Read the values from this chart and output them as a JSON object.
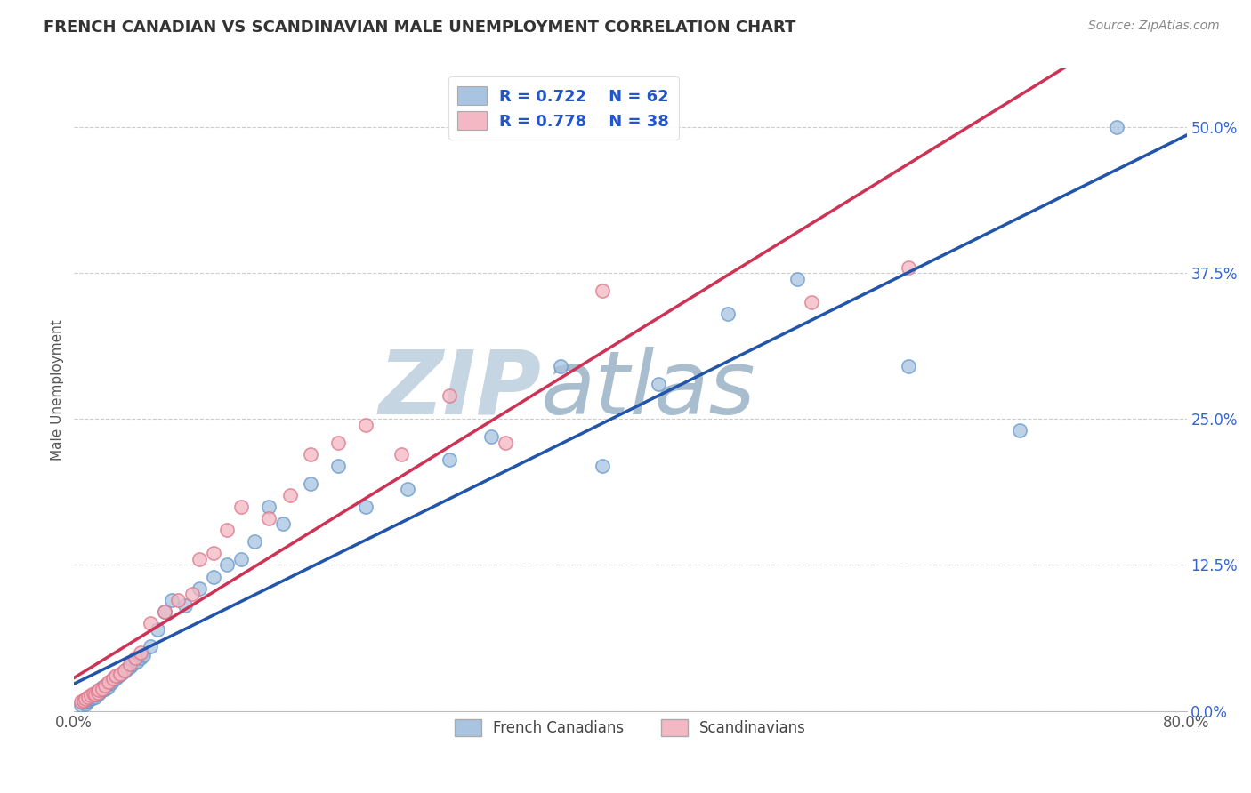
{
  "title": "FRENCH CANADIAN VS SCANDINAVIAN MALE UNEMPLOYMENT CORRELATION CHART",
  "source": "Source: ZipAtlas.com",
  "ylabel": "Male Unemployment",
  "xlim": [
    0.0,
    0.8
  ],
  "ylim": [
    0.0,
    0.55
  ],
  "ytick_positions": [
    0.0,
    0.125,
    0.25,
    0.375,
    0.5
  ],
  "ytick_labels": [
    "0.0%",
    "12.5%",
    "25.0%",
    "37.5%",
    "50.0%"
  ],
  "series1_name": "French Canadians",
  "series1_color_fill": "#a8c4e0",
  "series1_color_edge": "#6699cc",
  "series1_line_color": "#2255aa",
  "series2_name": "Scandinavians",
  "series2_color_fill": "#f4b8c4",
  "series2_color_edge": "#dd7788",
  "series2_line_color": "#cc3355",
  "legend_r1": "R = 0.722",
  "legend_n1": "N = 62",
  "legend_r2": "R = 0.778",
  "legend_n2": "N = 38",
  "background_color": "#ffffff",
  "grid_color": "#cccccc",
  "watermark_color_zip": "#c8d4df",
  "watermark_color_atlas": "#a8bece",
  "series1_x": [
    0.005,
    0.007,
    0.008,
    0.009,
    0.01,
    0.01,
    0.01,
    0.012,
    0.013,
    0.014,
    0.015,
    0.015,
    0.016,
    0.017,
    0.018,
    0.018,
    0.019,
    0.02,
    0.02,
    0.022,
    0.023,
    0.024,
    0.025,
    0.026,
    0.027,
    0.028,
    0.03,
    0.032,
    0.034,
    0.036,
    0.038,
    0.04,
    0.042,
    0.045,
    0.048,
    0.05,
    0.055,
    0.06,
    0.065,
    0.07,
    0.08,
    0.09,
    0.1,
    0.11,
    0.12,
    0.13,
    0.14,
    0.15,
    0.17,
    0.19,
    0.21,
    0.24,
    0.27,
    0.3,
    0.35,
    0.38,
    0.42,
    0.47,
    0.52,
    0.6,
    0.68,
    0.75
  ],
  "series1_y": [
    0.005,
    0.007,
    0.006,
    0.008,
    0.009,
    0.01,
    0.012,
    0.01,
    0.011,
    0.013,
    0.012,
    0.015,
    0.014,
    0.016,
    0.015,
    0.018,
    0.017,
    0.018,
    0.02,
    0.019,
    0.022,
    0.02,
    0.023,
    0.025,
    0.024,
    0.026,
    0.028,
    0.03,
    0.032,
    0.034,
    0.036,
    0.038,
    0.04,
    0.042,
    0.045,
    0.048,
    0.055,
    0.07,
    0.085,
    0.095,
    0.09,
    0.105,
    0.115,
    0.125,
    0.13,
    0.145,
    0.175,
    0.16,
    0.195,
    0.21,
    0.175,
    0.19,
    0.215,
    0.235,
    0.295,
    0.21,
    0.28,
    0.34,
    0.37,
    0.295,
    0.24,
    0.5
  ],
  "series2_x": [
    0.005,
    0.007,
    0.008,
    0.01,
    0.012,
    0.014,
    0.015,
    0.017,
    0.018,
    0.02,
    0.022,
    0.025,
    0.028,
    0.03,
    0.033,
    0.036,
    0.04,
    0.044,
    0.048,
    0.055,
    0.065,
    0.075,
    0.085,
    0.09,
    0.1,
    0.11,
    0.12,
    0.14,
    0.155,
    0.17,
    0.19,
    0.21,
    0.235,
    0.27,
    0.31,
    0.38,
    0.53,
    0.6
  ],
  "series2_y": [
    0.008,
    0.009,
    0.01,
    0.012,
    0.013,
    0.015,
    0.014,
    0.016,
    0.018,
    0.019,
    0.022,
    0.025,
    0.028,
    0.03,
    0.032,
    0.035,
    0.04,
    0.045,
    0.05,
    0.075,
    0.085,
    0.095,
    0.1,
    0.13,
    0.135,
    0.155,
    0.175,
    0.165,
    0.185,
    0.22,
    0.23,
    0.245,
    0.22,
    0.27,
    0.23,
    0.36,
    0.35,
    0.38
  ]
}
